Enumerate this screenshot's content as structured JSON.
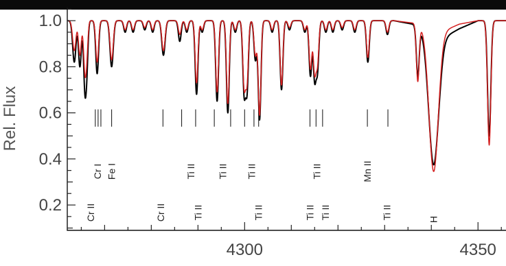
{
  "chart_data": {
    "type": "line",
    "title": "",
    "xlabel": "",
    "ylabel": "Rel. Flux",
    "xlim": [
      4262,
      4356
    ],
    "ylim": [
      0.09,
      1.06
    ],
    "xticks": [
      4300,
      4350
    ],
    "yticks": [
      0.2,
      0.4,
      0.6,
      0.8,
      1.0
    ],
    "xtick_labels": [
      "4300",
      "4350"
    ],
    "ytick_labels": [
      "0.2",
      "0.4",
      "0.6",
      "0.8",
      "1.0"
    ],
    "grid": false,
    "legend": "none",
    "series": [
      {
        "color": "#000000",
        "continuum": [
          [
            4262,
            1.0
          ],
          [
            4332,
            1.0
          ],
          [
            4336,
            0.985
          ],
          [
            4342,
            0.92
          ],
          [
            4346,
            0.965
          ],
          [
            4350,
            1.0
          ],
          [
            4356,
            1.0
          ]
        ],
        "lines": [
          {
            "x": 4263.5,
            "depth": 0.18,
            "width": 0.35
          },
          {
            "x": 4264.7,
            "depth": 0.2,
            "width": 0.3
          },
          {
            "x": 4265.8,
            "depth": 0.3,
            "width": 0.3
          },
          {
            "x": 4266.2,
            "depth": 0.15,
            "width": 0.25
          },
          {
            "x": 4268.4,
            "depth": 0.23,
            "width": 0.3
          },
          {
            "x": 4271.5,
            "depth": 0.2,
            "width": 0.35
          },
          {
            "x": 4274.4,
            "depth": 0.05,
            "width": 0.3
          },
          {
            "x": 4276.1,
            "depth": 0.05,
            "width": 0.3
          },
          {
            "x": 4278.6,
            "depth": 0.04,
            "width": 0.3
          },
          {
            "x": 4280.3,
            "depth": 0.05,
            "width": 0.3
          },
          {
            "x": 4282.6,
            "depth": 0.15,
            "width": 0.35
          },
          {
            "x": 4286.1,
            "depth": 0.09,
            "width": 0.3
          },
          {
            "x": 4287.6,
            "depth": 0.05,
            "width": 0.3
          },
          {
            "x": 4289.7,
            "depth": 0.32,
            "width": 0.3
          },
          {
            "x": 4290.9,
            "depth": 0.05,
            "width": 0.3
          },
          {
            "x": 4294.1,
            "depth": 0.35,
            "width": 0.3
          },
          {
            "x": 4296.4,
            "depth": 0.4,
            "width": 0.3
          },
          {
            "x": 4298.0,
            "depth": 0.05,
            "width": 0.3
          },
          {
            "x": 4299.9,
            "depth": 0.31,
            "width": 0.3
          },
          {
            "x": 4300.5,
            "depth": 0.3,
            "width": 0.3
          },
          {
            "x": 4302.3,
            "depth": 0.17,
            "width": 0.3
          },
          {
            "x": 4303.2,
            "depth": 0.43,
            "width": 0.3
          },
          {
            "x": 4305.9,
            "depth": 0.05,
            "width": 0.3
          },
          {
            "x": 4307.9,
            "depth": 0.3,
            "width": 0.3
          },
          {
            "x": 4309.6,
            "depth": 0.04,
            "width": 0.3
          },
          {
            "x": 4312.9,
            "depth": 0.05,
            "width": 0.3
          },
          {
            "x": 4314.1,
            "depth": 0.24,
            "width": 0.3
          },
          {
            "x": 4315.0,
            "depth": 0.25,
            "width": 0.3
          },
          {
            "x": 4315.6,
            "depth": 0.21,
            "width": 0.3
          },
          {
            "x": 4317.4,
            "depth": 0.05,
            "width": 0.3
          },
          {
            "x": 4318.9,
            "depth": 0.05,
            "width": 0.3
          },
          {
            "x": 4320.9,
            "depth": 0.04,
            "width": 0.3
          },
          {
            "x": 4323.6,
            "depth": 0.05,
            "width": 0.3
          },
          {
            "x": 4326.4,
            "depth": 0.18,
            "width": 0.3
          },
          {
            "x": 4330.6,
            "depth": 0.06,
            "width": 0.3
          },
          {
            "x": 4337.1,
            "depth": 0.22,
            "width": 0.3
          },
          {
            "x": 4340.5,
            "depth": 0.6,
            "width": 1.05
          },
          {
            "x": 4352.4,
            "depth": 0.5,
            "width": 0.35
          }
        ]
      },
      {
        "color": "#d42020",
        "continuum": [
          [
            4262,
            1.0
          ],
          [
            4332,
            1.0
          ],
          [
            4336,
            0.99
          ],
          [
            4342,
            0.95
          ],
          [
            4346,
            0.985
          ],
          [
            4350,
            1.0
          ],
          [
            4356,
            1.0
          ]
        ],
        "lines": [
          {
            "x": 4263.5,
            "depth": 0.13,
            "width": 0.35
          },
          {
            "x": 4264.7,
            "depth": 0.15,
            "width": 0.3
          },
          {
            "x": 4265.8,
            "depth": 0.22,
            "width": 0.3
          },
          {
            "x": 4266.2,
            "depth": 0.1,
            "width": 0.25
          },
          {
            "x": 4268.4,
            "depth": 0.18,
            "width": 0.3
          },
          {
            "x": 4271.5,
            "depth": 0.17,
            "width": 0.35
          },
          {
            "x": 4274.4,
            "depth": 0.04,
            "width": 0.3
          },
          {
            "x": 4276.1,
            "depth": 0.04,
            "width": 0.3
          },
          {
            "x": 4278.6,
            "depth": 0.03,
            "width": 0.3
          },
          {
            "x": 4280.3,
            "depth": 0.04,
            "width": 0.3
          },
          {
            "x": 4282.6,
            "depth": 0.13,
            "width": 0.35
          },
          {
            "x": 4286.1,
            "depth": 0.06,
            "width": 0.3
          },
          {
            "x": 4287.6,
            "depth": 0.04,
            "width": 0.3
          },
          {
            "x": 4289.7,
            "depth": 0.27,
            "width": 0.3
          },
          {
            "x": 4290.9,
            "depth": 0.04,
            "width": 0.3
          },
          {
            "x": 4294.1,
            "depth": 0.31,
            "width": 0.3
          },
          {
            "x": 4296.4,
            "depth": 0.36,
            "width": 0.3
          },
          {
            "x": 4298.0,
            "depth": 0.04,
            "width": 0.3
          },
          {
            "x": 4299.9,
            "depth": 0.28,
            "width": 0.3
          },
          {
            "x": 4300.5,
            "depth": 0.26,
            "width": 0.3
          },
          {
            "x": 4302.3,
            "depth": 0.15,
            "width": 0.3
          },
          {
            "x": 4303.2,
            "depth": 0.41,
            "width": 0.3
          },
          {
            "x": 4305.9,
            "depth": 0.04,
            "width": 0.3
          },
          {
            "x": 4307.9,
            "depth": 0.28,
            "width": 0.3
          },
          {
            "x": 4309.6,
            "depth": 0.03,
            "width": 0.3
          },
          {
            "x": 4312.9,
            "depth": 0.04,
            "width": 0.3
          },
          {
            "x": 4314.1,
            "depth": 0.21,
            "width": 0.3
          },
          {
            "x": 4315.0,
            "depth": 0.22,
            "width": 0.3
          },
          {
            "x": 4315.6,
            "depth": 0.18,
            "width": 0.3
          },
          {
            "x": 4317.4,
            "depth": 0.04,
            "width": 0.3
          },
          {
            "x": 4318.9,
            "depth": 0.04,
            "width": 0.3
          },
          {
            "x": 4320.9,
            "depth": 0.03,
            "width": 0.3
          },
          {
            "x": 4323.6,
            "depth": 0.04,
            "width": 0.3
          },
          {
            "x": 4326.4,
            "depth": 0.16,
            "width": 0.3
          },
          {
            "x": 4330.6,
            "depth": 0.05,
            "width": 0.3
          },
          {
            "x": 4337.1,
            "depth": 0.25,
            "width": 0.3
          },
          {
            "x": 4340.5,
            "depth": 0.64,
            "width": 1.0
          },
          {
            "x": 4352.4,
            "depth": 0.54,
            "width": 0.35
          }
        ]
      }
    ],
    "annotations": {
      "upper_row": {
        "marker_y_range": [
          0.54,
          0.615
        ],
        "items": [
          {
            "x": 4268.5,
            "label": "Cr I",
            "xs": [
              4268.0,
              4268.6,
              4269.2
            ]
          },
          {
            "x": 4271.5,
            "label": "Fe I",
            "xs": [
              4271.5
            ]
          },
          {
            "x": 4288.5,
            "label": "Ti II",
            "xs": [
              4282.5,
              4286.5,
              4289.5
            ]
          },
          {
            "x": 4295.3,
            "label": "Ti II",
            "xs": [
              4293.5,
              4297.0
            ]
          },
          {
            "x": 4301.5,
            "label": "Ti II",
            "xs": [
              4300.0,
              4302.0,
              4303.0
            ]
          },
          {
            "x": 4315.5,
            "label": "Ti II",
            "xs": [
              4314.0,
              4315.3,
              4316.7
            ]
          },
          {
            "x": 4326.3,
            "label": "Mn II",
            "xs": [
              4326.3,
              4330.7
            ]
          }
        ]
      },
      "lower_row": [
        {
          "x": 4267.0,
          "label": "Cr II"
        },
        {
          "x": 4282.0,
          "label": "Cr II"
        },
        {
          "x": 4290.0,
          "label": "Ti II"
        },
        {
          "x": 4303.0,
          "label": "Ti II"
        },
        {
          "x": 4314.0,
          "label": "Ti II"
        },
        {
          "x": 4317.3,
          "label": "Ti II"
        },
        {
          "x": 4330.5,
          "label": "Ti II"
        },
        {
          "x": 4340.5,
          "label": "H"
        }
      ]
    }
  }
}
